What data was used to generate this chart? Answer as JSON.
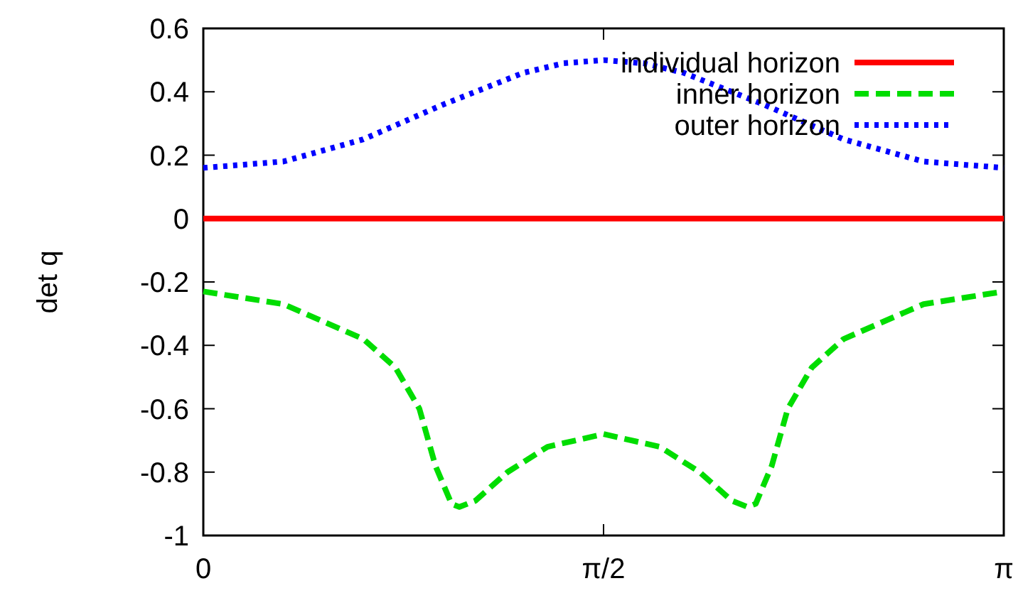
{
  "chart_data": {
    "type": "line",
    "ylabel": "det q",
    "xlim": [
      0,
      3.14159
    ],
    "ylim": [
      -1,
      0.6
    ],
    "xticks": [
      0,
      {
        "value": 1.5708,
        "label": "π/2"
      },
      {
        "value": 3.14159,
        "label": "π"
      }
    ],
    "yticks": [
      -1,
      -0.8,
      -0.6,
      -0.4,
      -0.2,
      0,
      0.2,
      0.4,
      0.6
    ],
    "legend": "top right",
    "series": [
      {
        "name": "individual horizon",
        "color": "#ff0000",
        "line_style": "solid",
        "x": [
          0,
          3.14159
        ],
        "values": [
          0,
          0
        ]
      },
      {
        "name": "inner horizon",
        "color": "#00dd00",
        "line_style": "dashed",
        "x": [
          0,
          0.314,
          0.628,
          0.754,
          0.848,
          0.911,
          0.974,
          1.005,
          1.068,
          1.194,
          1.351,
          1.571,
          1.791,
          1.948,
          2.074,
          2.136,
          2.168,
          2.231,
          2.294,
          2.388,
          2.513,
          2.827,
          3.14159
        ],
        "values": [
          -0.23,
          -0.27,
          -0.38,
          -0.47,
          -0.6,
          -0.78,
          -0.9,
          -0.91,
          -0.89,
          -0.8,
          -0.72,
          -0.68,
          -0.72,
          -0.8,
          -0.89,
          -0.91,
          -0.9,
          -0.78,
          -0.6,
          -0.47,
          -0.38,
          -0.27,
          -0.23
        ]
      },
      {
        "name": "outer horizon",
        "color": "#0000ff",
        "line_style": "dotted",
        "x": [
          0,
          0.314,
          0.628,
          0.942,
          1.257,
          1.414,
          1.571,
          1.728,
          1.885,
          2.199,
          2.513,
          2.827,
          3.14159
        ],
        "values": [
          0.16,
          0.18,
          0.25,
          0.36,
          0.46,
          0.49,
          0.5,
          0.49,
          0.46,
          0.36,
          0.25,
          0.18,
          0.16
        ]
      }
    ]
  }
}
